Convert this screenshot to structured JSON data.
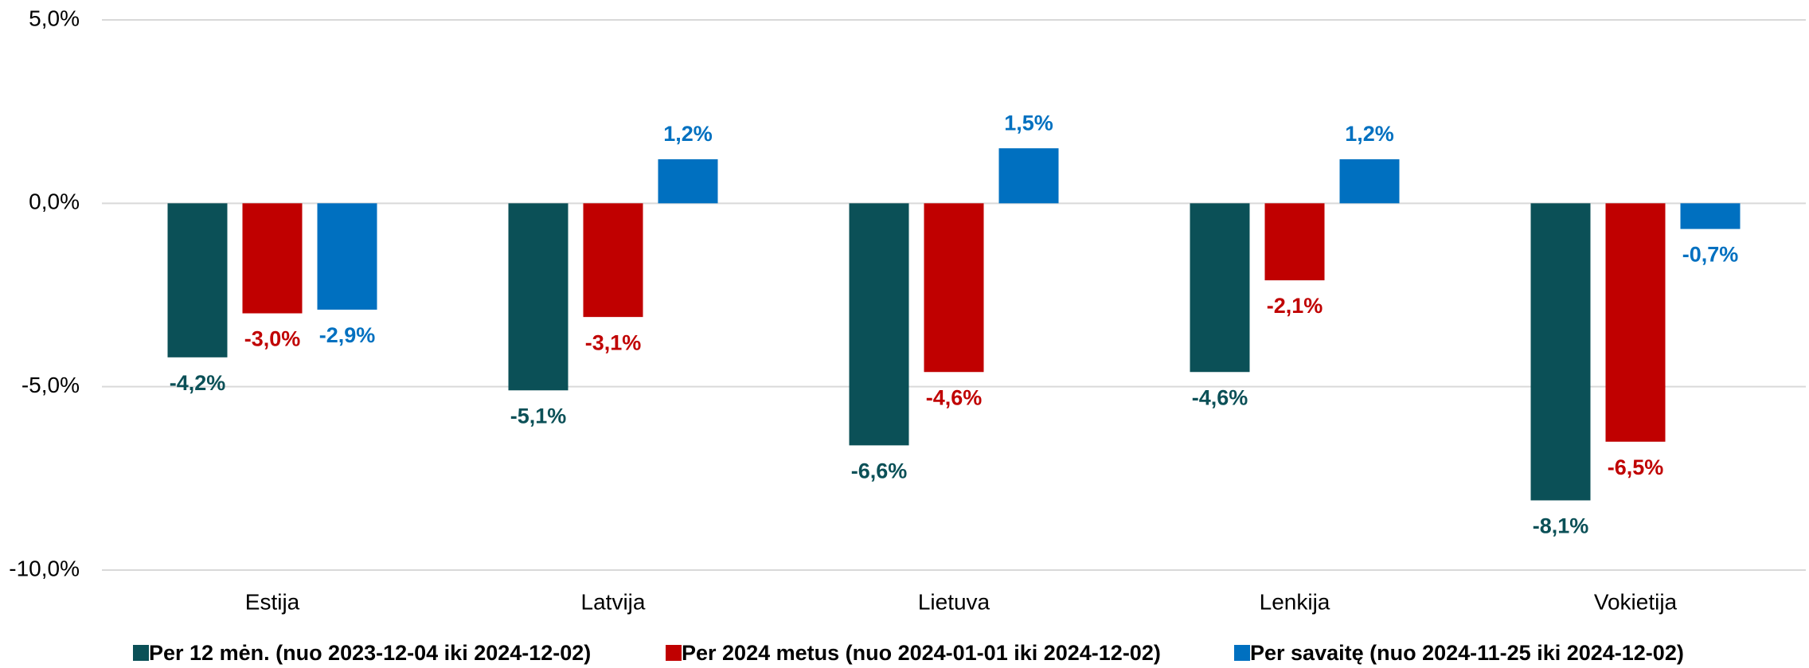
{
  "chart_data": {
    "type": "bar",
    "categories": [
      "Estija",
      "Latvija",
      "Lietuva",
      "Lenkija",
      "Vokietija"
    ],
    "series": [
      {
        "name": "Per 12 mėn. (nuo 2023-12-04 iki 2024-12-02)",
        "color": "#0b5057",
        "values": [
          -4.2,
          -5.1,
          -6.6,
          -4.6,
          -8.1
        ],
        "value_labels": [
          "-4,2%",
          "-5,1%",
          "-6,6%",
          "-4,6%",
          "-8,1%"
        ]
      },
      {
        "name": "Per 2024 metus (nuo 2024-01-01 iki 2024-12-02)",
        "color": "#c00000",
        "values": [
          -3.0,
          -3.1,
          -4.6,
          -2.1,
          -6.5
        ],
        "value_labels": [
          "-3,0%",
          "-3,1%",
          "-4,6%",
          "-2,1%",
          "-6,5%"
        ]
      },
      {
        "name": "Per savaitę (nuo 2024-11-25 iki 2024-12-02)",
        "color": "#0070c0",
        "values": [
          -2.9,
          1.2,
          1.5,
          1.2,
          -0.7
        ],
        "value_labels": [
          "-2,9%",
          "1,2%",
          "1,5%",
          "1,2%",
          "-0,7%"
        ]
      }
    ],
    "ylim": [
      -10,
      5
    ],
    "yticks": [
      {
        "value": -10,
        "label": "-10,0%"
      },
      {
        "value": -5,
        "label": "-5,0%"
      },
      {
        "value": 0,
        "label": "0,0%"
      },
      {
        "value": 5,
        "label": "5,0%"
      }
    ],
    "grid": true,
    "legend": "bottom"
  }
}
